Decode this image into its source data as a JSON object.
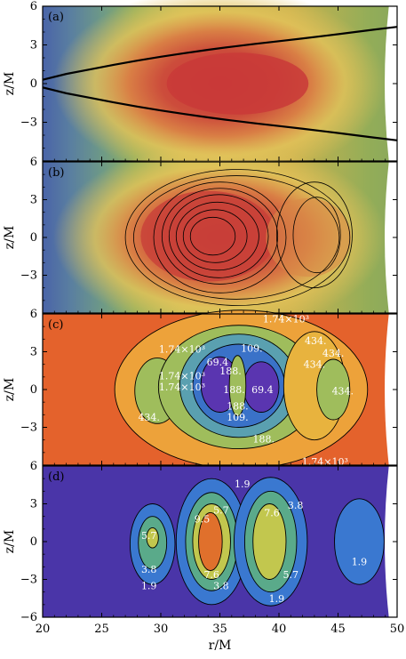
{
  "chart_data": {
    "type": "heatmap",
    "xlabel": "r/M",
    "ylabel": "z/M",
    "xlim": [
      20,
      50
    ],
    "ylim": [
      -6,
      6
    ],
    "xticks": [
      20,
      25,
      30,
      35,
      40,
      45,
      50
    ],
    "yticks": [
      -6,
      -3,
      0,
      3,
      6
    ],
    "panels": [
      {
        "label": "(a)",
        "colormap": "blue-green-yellow-red",
        "lines": [
          {
            "x": [
              20,
              22,
              24,
              26,
              28,
              30,
              32,
              34,
              36,
              38,
              40,
              42,
              44,
              46,
              48,
              50
            ],
            "y": [
              0.3,
              0.75,
              1.1,
              1.45,
              1.78,
              2.08,
              2.36,
              2.62,
              2.86,
              3.08,
              3.29,
              3.5,
              3.72,
              3.95,
              4.18,
              4.4
            ]
          },
          {
            "x": [
              20,
              22,
              24,
              26,
              28,
              30,
              32,
              34,
              36,
              38,
              40,
              42,
              44,
              46,
              48,
              50
            ],
            "y": [
              -0.3,
              -0.75,
              -1.1,
              -1.45,
              -1.78,
              -2.08,
              -2.36,
              -2.62,
              -2.86,
              -3.08,
              -3.29,
              -3.5,
              -3.72,
              -3.95,
              -4.18,
              -4.4
            ]
          }
        ]
      },
      {
        "label": "(b)",
        "colormap": "blue-green-yellow-red"
      },
      {
        "label": "(c)",
        "colormap": "orange-yellow-green-blue-purple",
        "contour_labels": [
          {
            "text": "1.74×10³",
            "x": 31.8,
            "y": 3.2
          },
          {
            "text": "1.74×10³",
            "x": 31.8,
            "y": 1.1
          },
          {
            "text": "1.74×10³",
            "x": 31.8,
            "y": 0.2
          },
          {
            "text": "434.",
            "x": 29.0,
            "y": -2.2
          },
          {
            "text": "109.",
            "x": 37.7,
            "y": 3.3
          },
          {
            "text": "69.4",
            "x": 34.8,
            "y": 2.2
          },
          {
            "text": "188.",
            "x": 35.9,
            "y": 1.5
          },
          {
            "text": "69.4",
            "x": 38.6,
            "y": 0.0
          },
          {
            "text": "188.",
            "x": 36.2,
            "y": 0.0
          },
          {
            "text": "188.",
            "x": 36.5,
            "y": -1.3
          },
          {
            "text": "109.",
            "x": 36.5,
            "y": -2.2
          },
          {
            "text": "188.",
            "x": 38.7,
            "y": -3.9
          },
          {
            "text": "434.",
            "x": 43.1,
            "y": 3.9
          },
          {
            "text": "434.",
            "x": 44.6,
            "y": 2.9
          },
          {
            "text": "434.",
            "x": 43.0,
            "y": 2.0
          },
          {
            "text": "434.",
            "x": 45.4,
            "y": -0.1
          },
          {
            "text": "1.74×10³",
            "x": 40.6,
            "y": 5.6
          },
          {
            "text": "1.74×10³",
            "x": 43.9,
            "y": -5.7
          }
        ]
      },
      {
        "label": "(d)",
        "colormap": "purple-blue-green-yellow-orange",
        "contour_labels": [
          {
            "text": "1.9",
            "x": 36.9,
            "y": 4.6
          },
          {
            "text": "5.7",
            "x": 29.0,
            "y": 0.5
          },
          {
            "text": "3.8",
            "x": 29.0,
            "y": -2.2
          },
          {
            "text": "1.9",
            "x": 29.0,
            "y": -3.5
          },
          {
            "text": "9.5",
            "x": 33.5,
            "y": 1.8
          },
          {
            "text": "5.7",
            "x": 35.1,
            "y": 2.5
          },
          {
            "text": "7.6",
            "x": 34.3,
            "y": -2.6
          },
          {
            "text": "3.8",
            "x": 35.1,
            "y": -3.5
          },
          {
            "text": "7.6",
            "x": 39.4,
            "y": 2.3
          },
          {
            "text": "3.8",
            "x": 41.4,
            "y": 2.9
          },
          {
            "text": "5.7",
            "x": 41.0,
            "y": -2.6
          },
          {
            "text": "1.9",
            "x": 39.8,
            "y": -4.5
          },
          {
            "text": "1.9",
            "x": 46.8,
            "y": -1.6
          }
        ]
      }
    ]
  }
}
